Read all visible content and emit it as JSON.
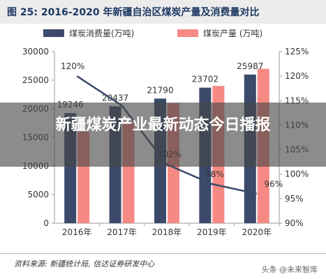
{
  "header": {
    "title": "图 25:  2016-2020 年新疆自治区煤炭产量及消费量对比"
  },
  "overlay": {
    "text": "新疆煤炭产业最新动态今日播报"
  },
  "footer": {
    "source": "资料来源: 新疆统计局, 信达证券研发中心",
    "watermark": "头条 @未来智库"
  },
  "colors": {
    "consumption": "#3b4a6b",
    "production": "#f58a84",
    "ratio_line": "#3b4a6b",
    "axis": "#9a9a9a",
    "text": "#333333"
  },
  "chart_data": {
    "type": "bar",
    "categories": [
      "2016年",
      "2017年",
      "2018年",
      "2019年",
      "2020年"
    ],
    "series": [
      {
        "name": "煤炭消费量(万吨)",
        "values": [
          19246,
          20437,
          21790,
          23702,
          25987
        ],
        "axis": "left"
      },
      {
        "name": "煤炭产量 (万吨)",
        "values": [
          16000,
          17500,
          21000,
          24000,
          27000
        ],
        "axis": "left"
      },
      {
        "name": "",
        "type": "line",
        "values": [
          120,
          114,
          102,
          98,
          96
        ],
        "axis": "right"
      }
    ],
    "data_labels": {
      "consumption": [
        "19246",
        "20437",
        "21790",
        "23702",
        "25987"
      ],
      "ratio": [
        "120%",
        "",
        "102%",
        "98%",
        "96%"
      ]
    },
    "ylim": [
      0,
      30000
    ],
    "yticks": [
      "0",
      "5000",
      "10000",
      "15000",
      "20000",
      "25000",
      "30000"
    ],
    "y2lim": [
      90,
      125
    ],
    "y2ticks": [
      "90%",
      "95%",
      "100%",
      "105%",
      "110%",
      "115%",
      "120%",
      "125%"
    ],
    "legend": "top-center"
  }
}
